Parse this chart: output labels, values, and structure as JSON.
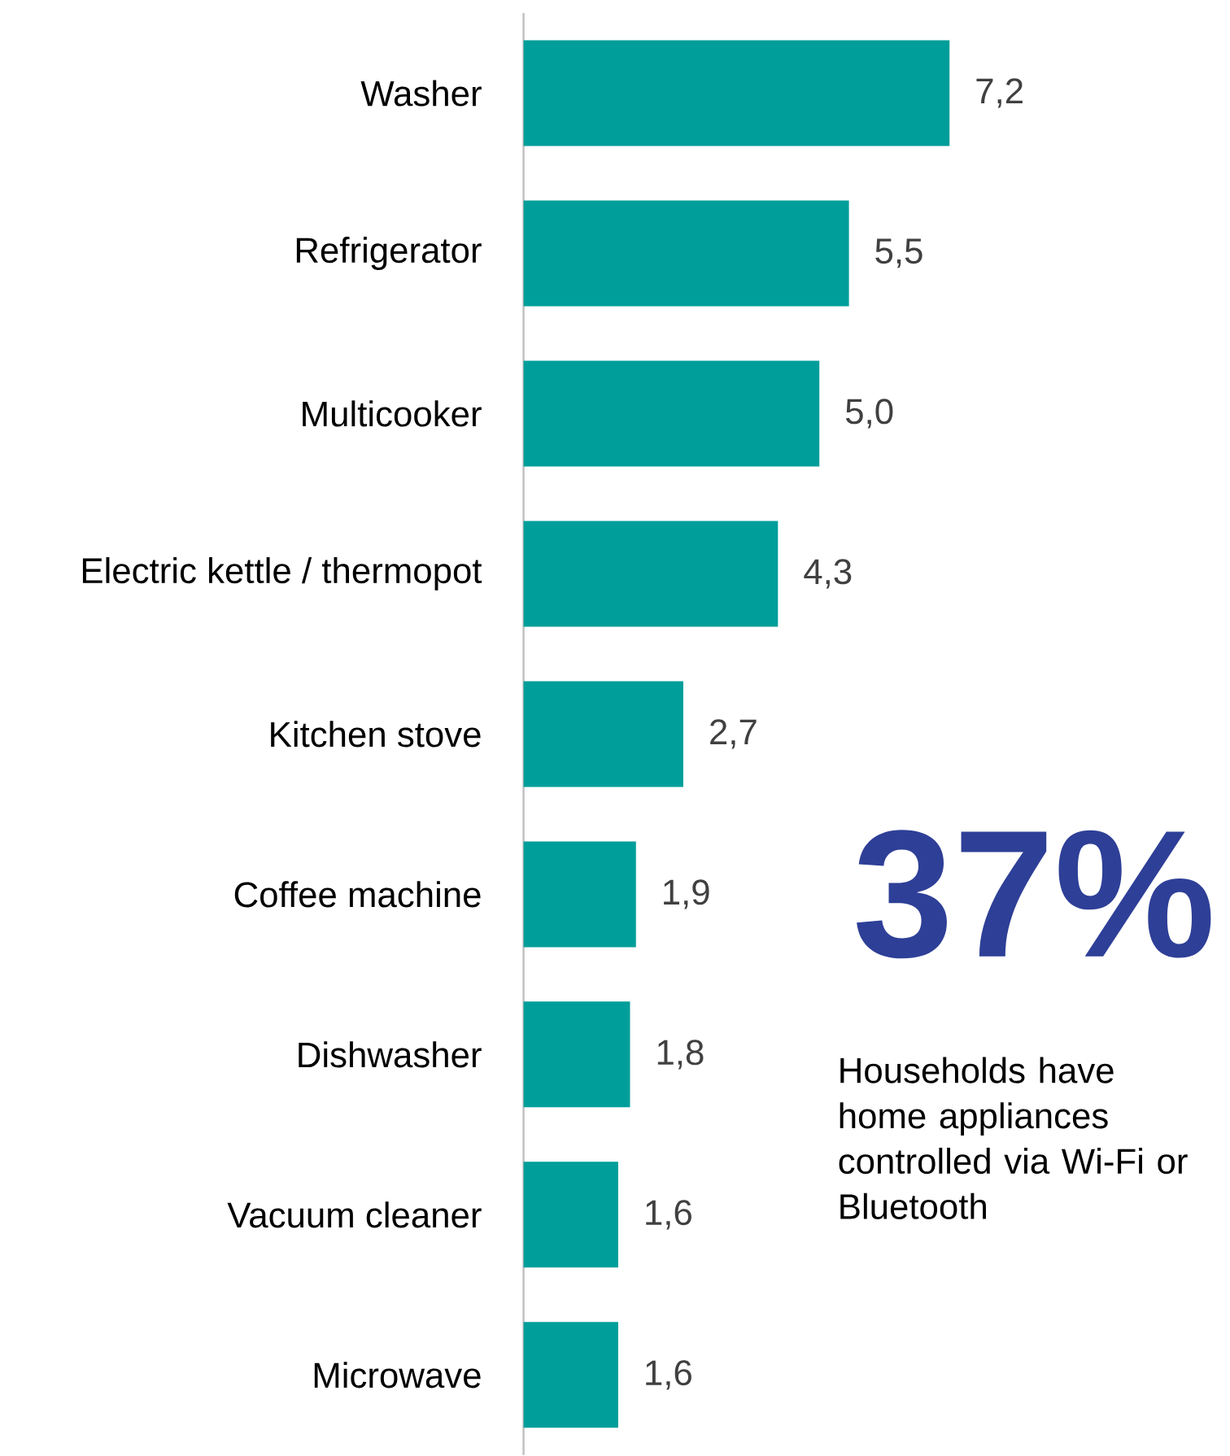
{
  "chart_data": {
    "type": "bar",
    "orientation": "horizontal",
    "categories": [
      "Washer",
      "Refrigerator",
      "Multicooker",
      "Electric kettle / thermopot",
      "Kitchen stove",
      "Coffee machine",
      "Dishwasher",
      "Vacuum cleaner",
      "Microwave"
    ],
    "values": [
      7.2,
      5.5,
      5.0,
      4.3,
      2.7,
      1.9,
      1.8,
      1.6,
      1.6
    ],
    "value_labels": [
      "7,2",
      "5,5",
      "5,0",
      "4,3",
      "2,7",
      "1,9",
      "1,8",
      "1,6",
      "1,6"
    ],
    "color": "#009e9a",
    "tick_labels": "y",
    "annotations": [
      "37%",
      "Households have home appliances controlled via Wi-Fi or Bluetooth"
    ]
  }
}
